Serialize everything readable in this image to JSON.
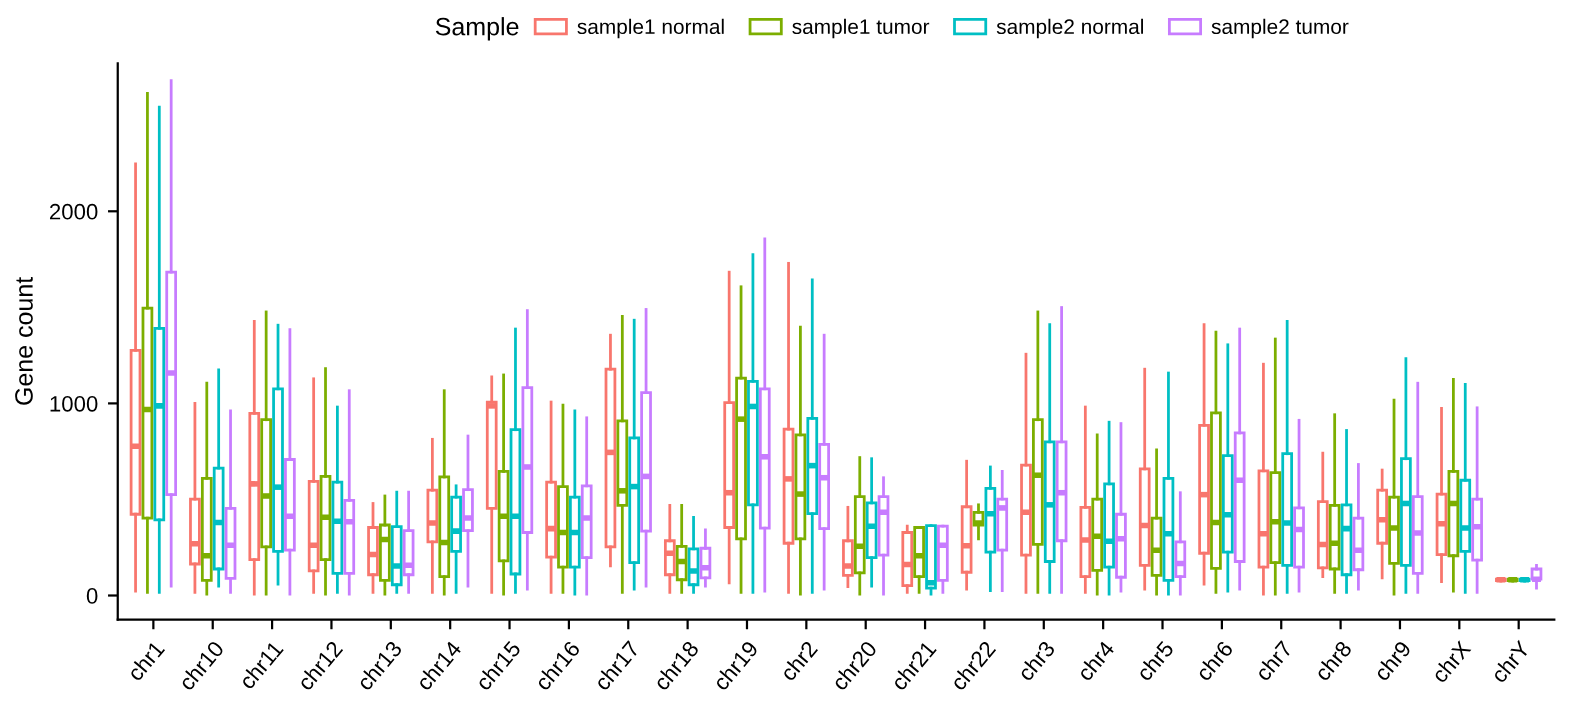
{
  "chart_data": {
    "type": "box",
    "ylabel": "Gene count",
    "legend_title": "Sample",
    "legend": "top",
    "grid": false,
    "ylim": [
      -125,
      2770
    ],
    "yticks": [
      0,
      1000,
      2000
    ],
    "categories": [
      "chr1",
      "chr10",
      "chr11",
      "chr12",
      "chr13",
      "chr14",
      "chr15",
      "chr16",
      "chr17",
      "chr18",
      "chr19",
      "chr2",
      "chr20",
      "chr21",
      "chr22",
      "chr3",
      "chr4",
      "chr5",
      "chr6",
      "chr7",
      "chr8",
      "chr9",
      "chrX",
      "chrY"
    ],
    "series": [
      {
        "name": "sample1 normal",
        "color": "#f8766d",
        "boxes": [
          {
            "low": 23,
            "q1": 423,
            "median": 777,
            "q3": 1276,
            "high": 2247
          },
          {
            "low": 16,
            "q1": 164,
            "median": 269,
            "q3": 502,
            "high": 1000
          },
          {
            "low": 7,
            "q1": 187,
            "median": 581,
            "q3": 948,
            "high": 1427
          },
          {
            "low": 16,
            "q1": 128,
            "median": 262,
            "q3": 594,
            "high": 1128
          },
          {
            "low": 16,
            "q1": 108,
            "median": 213,
            "q3": 354,
            "high": 479
          },
          {
            "low": 16,
            "q1": 279,
            "median": 377,
            "q3": 548,
            "high": 813
          },
          {
            "low": 16,
            "q1": 453,
            "median": 987,
            "q3": 1007,
            "high": 1138
          },
          {
            "low": 16,
            "q1": 200,
            "median": 348,
            "q3": 590,
            "high": 1007
          },
          {
            "low": 154,
            "q1": 253,
            "median": 745,
            "q3": 1178,
            "high": 1355
          },
          {
            "low": 16,
            "q1": 108,
            "median": 220,
            "q3": 285,
            "high": 469
          },
          {
            "low": 66,
            "q1": 354,
            "median": 535,
            "q3": 1004,
            "high": 1683
          },
          {
            "low": 16,
            "q1": 272,
            "median": 607,
            "q3": 866,
            "high": 1729
          },
          {
            "low": 46,
            "q1": 105,
            "median": 154,
            "q3": 285,
            "high": 459
          },
          {
            "low": 16,
            "q1": 52,
            "median": 161,
            "q3": 328,
            "high": 361
          },
          {
            "low": 33,
            "q1": 121,
            "median": 259,
            "q3": 462,
            "high": 699
          },
          {
            "low": 16,
            "q1": 210,
            "median": 433,
            "q3": 679,
            "high": 1256
          },
          {
            "low": 16,
            "q1": 98,
            "median": 289,
            "q3": 459,
            "high": 981
          },
          {
            "low": 33,
            "q1": 157,
            "median": 364,
            "q3": 659,
            "high": 1178
          },
          {
            "low": 59,
            "q1": 220,
            "median": 525,
            "q3": 886,
            "high": 1410
          },
          {
            "low": 7,
            "q1": 148,
            "median": 321,
            "q3": 649,
            "high": 1204
          },
          {
            "low": 98,
            "q1": 144,
            "median": 266,
            "q3": 489,
            "high": 741
          },
          {
            "low": 92,
            "q1": 272,
            "median": 394,
            "q3": 548,
            "high": 653
          },
          {
            "low": 72,
            "q1": 213,
            "median": 374,
            "q3": 528,
            "high": 974
          },
          {
            "low": 75,
            "q1": 78,
            "median": 82,
            "q3": 85,
            "high": 88
          }
        ]
      },
      {
        "name": "sample1 tumor",
        "color": "#7cae00",
        "boxes": [
          {
            "low": 16,
            "q1": 403,
            "median": 968,
            "q3": 1496,
            "high": 2614
          },
          {
            "low": 7,
            "q1": 79,
            "median": 207,
            "q3": 610,
            "high": 1105
          },
          {
            "low": 7,
            "q1": 253,
            "median": 518,
            "q3": 915,
            "high": 1476
          },
          {
            "low": 7,
            "q1": 187,
            "median": 407,
            "q3": 620,
            "high": 1181
          },
          {
            "low": 7,
            "q1": 79,
            "median": 292,
            "q3": 367,
            "high": 518
          },
          {
            "low": 7,
            "q1": 98,
            "median": 276,
            "q3": 617,
            "high": 1066
          },
          {
            "low": 7,
            "q1": 180,
            "median": 413,
            "q3": 646,
            "high": 1148
          },
          {
            "low": 16,
            "q1": 148,
            "median": 328,
            "q3": 567,
            "high": 991
          },
          {
            "low": 16,
            "q1": 469,
            "median": 545,
            "q3": 909,
            "high": 1453
          },
          {
            "low": 16,
            "q1": 82,
            "median": 177,
            "q3": 256,
            "high": 469
          },
          {
            "low": 16,
            "q1": 295,
            "median": 918,
            "q3": 1132,
            "high": 1607
          },
          {
            "low": 7,
            "q1": 295,
            "median": 528,
            "q3": 836,
            "high": 1397
          },
          {
            "low": 7,
            "q1": 118,
            "median": 256,
            "q3": 515,
            "high": 718
          },
          {
            "low": 16,
            "q1": 98,
            "median": 207,
            "q3": 354,
            "high": 354
          },
          {
            "low": 295,
            "q1": 367,
            "median": 377,
            "q3": 433,
            "high": 472
          },
          {
            "low": 16,
            "q1": 266,
            "median": 626,
            "q3": 915,
            "high": 1476
          },
          {
            "low": 7,
            "q1": 131,
            "median": 308,
            "q3": 502,
            "high": 836
          },
          {
            "low": 7,
            "q1": 105,
            "median": 236,
            "q3": 403,
            "high": 758
          },
          {
            "low": 16,
            "q1": 141,
            "median": 380,
            "q3": 951,
            "high": 1371
          },
          {
            "low": 7,
            "q1": 171,
            "median": 384,
            "q3": 640,
            "high": 1335
          },
          {
            "low": 16,
            "q1": 138,
            "median": 272,
            "q3": 469,
            "high": 941
          },
          {
            "low": 7,
            "q1": 167,
            "median": 351,
            "q3": 512,
            "high": 1017
          },
          {
            "low": 23,
            "q1": 207,
            "median": 479,
            "q3": 646,
            "high": 1125
          },
          {
            "low": 75,
            "q1": 78,
            "median": 82,
            "q3": 85,
            "high": 88
          }
        ]
      },
      {
        "name": "sample2 normal",
        "color": "#00bfc4",
        "boxes": [
          {
            "low": 16,
            "q1": 394,
            "median": 987,
            "q3": 1391,
            "high": 2542
          },
          {
            "low": 49,
            "q1": 138,
            "median": 380,
            "q3": 663,
            "high": 1174
          },
          {
            "low": 59,
            "q1": 230,
            "median": 564,
            "q3": 1076,
            "high": 1407
          },
          {
            "low": 16,
            "q1": 115,
            "median": 387,
            "q3": 590,
            "high": 981
          },
          {
            "low": 16,
            "q1": 56,
            "median": 154,
            "q3": 358,
            "high": 538
          },
          {
            "low": 16,
            "q1": 230,
            "median": 335,
            "q3": 512,
            "high": 571
          },
          {
            "low": 16,
            "q1": 112,
            "median": 413,
            "q3": 863,
            "high": 1387
          },
          {
            "low": 7,
            "q1": 148,
            "median": 328,
            "q3": 512,
            "high": 961
          },
          {
            "low": 33,
            "q1": 171,
            "median": 567,
            "q3": 820,
            "high": 1433
          },
          {
            "low": 16,
            "q1": 56,
            "median": 128,
            "q3": 243,
            "high": 407
          },
          {
            "low": 16,
            "q1": 472,
            "median": 984,
            "q3": 1115,
            "high": 1774
          },
          {
            "low": 16,
            "q1": 426,
            "median": 676,
            "q3": 922,
            "high": 1643
          },
          {
            "low": 49,
            "q1": 197,
            "median": 361,
            "q3": 482,
            "high": 712
          },
          {
            "low": 7,
            "q1": 39,
            "median": 66,
            "q3": 364,
            "high": 364
          },
          {
            "low": 26,
            "q1": 226,
            "median": 426,
            "q3": 558,
            "high": 669
          },
          {
            "low": 16,
            "q1": 177,
            "median": 472,
            "q3": 800,
            "high": 1410
          },
          {
            "low": 7,
            "q1": 148,
            "median": 282,
            "q3": 581,
            "high": 902
          },
          {
            "low": 7,
            "q1": 79,
            "median": 321,
            "q3": 610,
            "high": 1158
          },
          {
            "low": 23,
            "q1": 226,
            "median": 420,
            "q3": 728,
            "high": 1305
          },
          {
            "low": 16,
            "q1": 157,
            "median": 377,
            "q3": 738,
            "high": 1427
          },
          {
            "low": 16,
            "q1": 108,
            "median": 348,
            "q3": 472,
            "high": 859
          },
          {
            "low": 16,
            "q1": 157,
            "median": 479,
            "q3": 712,
            "high": 1233
          },
          {
            "low": 16,
            "q1": 230,
            "median": 351,
            "q3": 600,
            "high": 1099
          },
          {
            "low": 75,
            "q1": 78,
            "median": 82,
            "q3": 85,
            "high": 88
          }
        ]
      },
      {
        "name": "sample2 tumor",
        "color": "#c77cff",
        "boxes": [
          {
            "low": 49,
            "q1": 525,
            "median": 1158,
            "q3": 1683,
            "high": 2680
          },
          {
            "low": 16,
            "q1": 89,
            "median": 262,
            "q3": 453,
            "high": 961
          },
          {
            "low": 7,
            "q1": 236,
            "median": 413,
            "q3": 708,
            "high": 1384
          },
          {
            "low": 7,
            "q1": 115,
            "median": 384,
            "q3": 495,
            "high": 1066
          },
          {
            "low": 16,
            "q1": 108,
            "median": 157,
            "q3": 338,
            "high": 538
          },
          {
            "low": 49,
            "q1": 338,
            "median": 403,
            "q3": 551,
            "high": 830
          },
          {
            "low": 33,
            "q1": 328,
            "median": 669,
            "q3": 1082,
            "high": 1483
          },
          {
            "low": 7,
            "q1": 197,
            "median": 403,
            "q3": 571,
            "high": 925
          },
          {
            "low": 49,
            "q1": 335,
            "median": 620,
            "q3": 1056,
            "high": 1489
          },
          {
            "low": 49,
            "q1": 92,
            "median": 144,
            "q3": 246,
            "high": 341
          },
          {
            "low": 23,
            "q1": 351,
            "median": 722,
            "q3": 1076,
            "high": 1856
          },
          {
            "low": 33,
            "q1": 348,
            "median": 613,
            "q3": 787,
            "high": 1355
          },
          {
            "low": 7,
            "q1": 210,
            "median": 433,
            "q3": 515,
            "high": 613
          },
          {
            "low": 16,
            "q1": 79,
            "median": 262,
            "q3": 361,
            "high": 361
          },
          {
            "low": 26,
            "q1": 236,
            "median": 456,
            "q3": 502,
            "high": 646
          },
          {
            "low": 16,
            "q1": 285,
            "median": 535,
            "q3": 800,
            "high": 1499
          },
          {
            "low": 23,
            "q1": 95,
            "median": 295,
            "q3": 423,
            "high": 895
          },
          {
            "low": 7,
            "q1": 98,
            "median": 167,
            "q3": 279,
            "high": 535
          },
          {
            "low": 33,
            "q1": 177,
            "median": 600,
            "q3": 846,
            "high": 1387
          },
          {
            "low": 23,
            "q1": 148,
            "median": 344,
            "q3": 456,
            "high": 912
          },
          {
            "low": 33,
            "q1": 134,
            "median": 236,
            "q3": 403,
            "high": 682
          },
          {
            "low": 16,
            "q1": 115,
            "median": 325,
            "q3": 515,
            "high": 1105
          },
          {
            "low": 16,
            "q1": 184,
            "median": 358,
            "q3": 502,
            "high": 977
          },
          {
            "low": 39,
            "q1": 85,
            "median": 85,
            "q3": 138,
            "high": 157
          }
        ]
      }
    ]
  }
}
